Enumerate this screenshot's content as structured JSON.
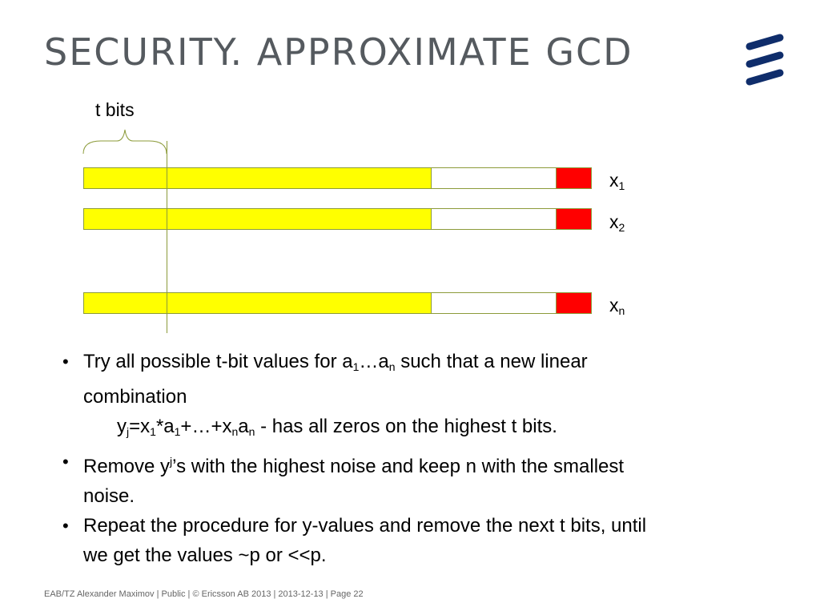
{
  "slide": {
    "title": "SECURITY. APPROXIMATE GCD",
    "logo_name": "ericsson-logo",
    "logo_color": "#0f2d6b"
  },
  "diagram": {
    "brace_label": "t bits",
    "rows": [
      {
        "label_base": "x",
        "label_sub": "1"
      },
      {
        "label_base": "x",
        "label_sub": "2"
      },
      {
        "label_base": "x",
        "label_sub": "n"
      }
    ],
    "colors": {
      "high_bits": "#ffff00",
      "middle_bits": "#ffffff",
      "noise_bits": "#ff0000",
      "outline": "#8c9b3a"
    }
  },
  "bullets": [
    {
      "line1_pre": "Try all possible t-bit values for a",
      "line1_sub1": "1",
      "line1_mid": "…a",
      "line1_sub2": "n",
      "line1_post": " such that a new linear combination",
      "formula_y": "y",
      "formula_y_sub": "j",
      "formula_a": "=x",
      "formula_a_sub": "1",
      "formula_b": "*a",
      "formula_b_sub": "1",
      "formula_c": "+…+x",
      "formula_c_sub": "n",
      "formula_d": "a",
      "formula_d_sub": "n",
      "formula_post": " - has all zeros on the highest t bits."
    },
    {
      "pre": "Remove y",
      "sub": "j",
      "post": "’s with the highest noise and keep n with the smallest noise."
    },
    {
      "text": "Repeat the procedure for y-values and remove the next t bits, until we get the values ~p or <<p."
    }
  ],
  "footer": {
    "text": "EAB/TZ Alexander Maximov  |  Public  |  © Ericsson AB 2013  |  2013-12-13  |  Page 22"
  }
}
